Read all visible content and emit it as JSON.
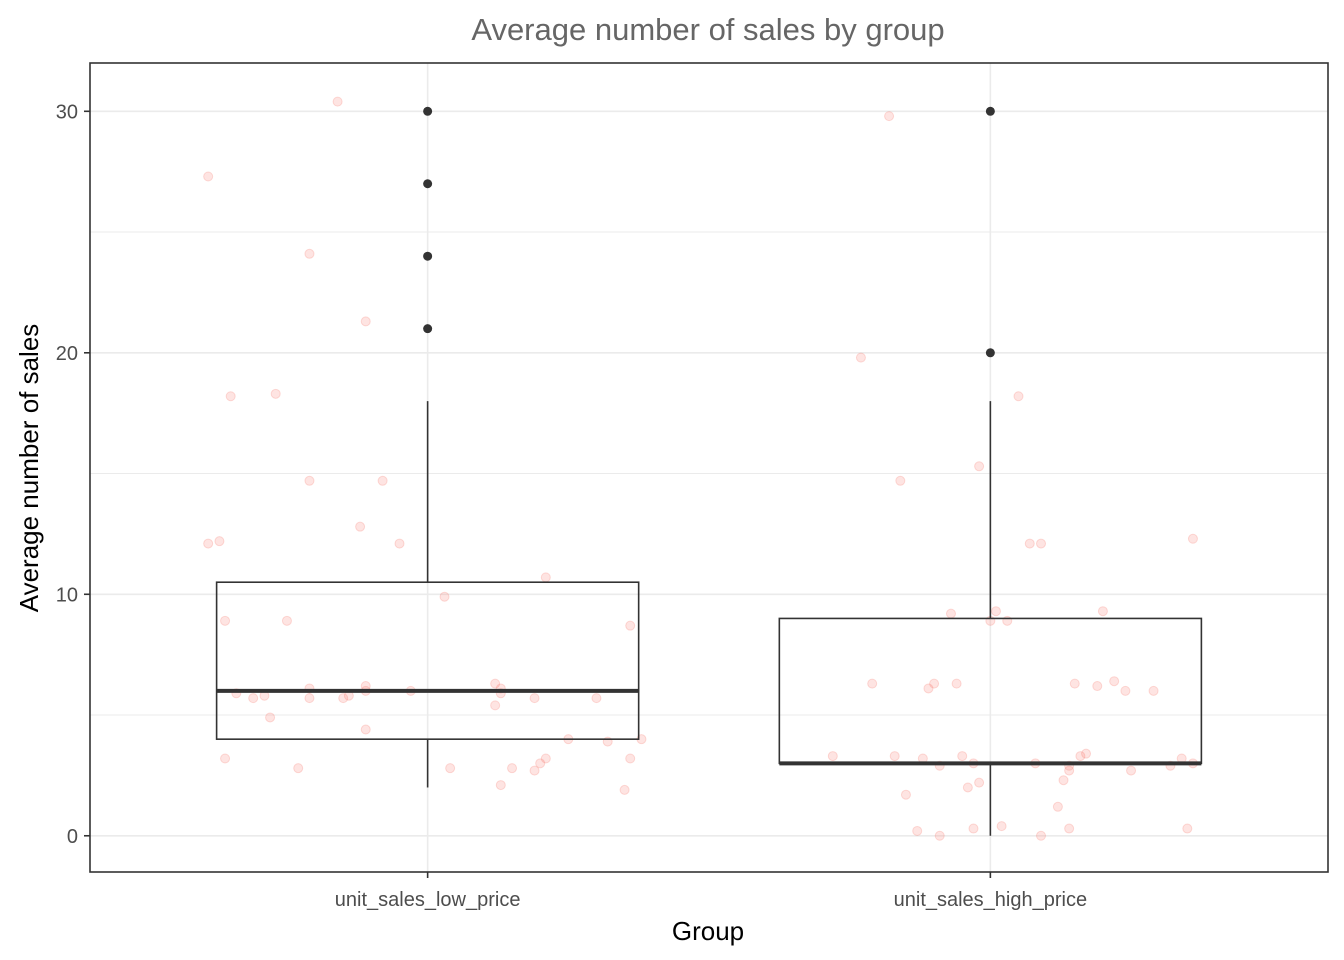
{
  "chart_data": {
    "type": "boxplot",
    "title": "Average number of sales by group",
    "xlabel": "Group",
    "ylabel": "Average number of sales",
    "categories": [
      "unit_sales_low_price",
      "unit_sales_high_price"
    ],
    "ylim": [
      -1.5,
      32
    ],
    "yticks": [
      0,
      10,
      20,
      30
    ],
    "grid": true,
    "colors": {
      "jitter": "#f8766d",
      "box": "#333333",
      "grid": "#ebebeb",
      "panel_border": "#333333",
      "title": "#666666"
    },
    "boxes": [
      {
        "category": "unit_sales_low_price",
        "whisker_low": 2,
        "q1": 4,
        "median": 6,
        "q3": 10.5,
        "whisker_high": 18,
        "outliers": [
          21,
          24,
          27,
          30
        ]
      },
      {
        "category": "unit_sales_high_price",
        "whisker_low": 0,
        "q1": 3,
        "median": 3,
        "q3": 9,
        "whisker_high": 18,
        "outliers": [
          20,
          30
        ]
      }
    ],
    "jitter_points": [
      {
        "x": 0.61,
        "y": 27.3
      },
      {
        "x": 0.84,
        "y": 30.4
      },
      {
        "x": 0.79,
        "y": 24.1
      },
      {
        "x": 0.89,
        "y": 21.3
      },
      {
        "x": 0.73,
        "y": 18.3
      },
      {
        "x": 0.65,
        "y": 18.2
      },
      {
        "x": 0.79,
        "y": 14.7
      },
      {
        "x": 0.92,
        "y": 14.7
      },
      {
        "x": 0.88,
        "y": 12.8
      },
      {
        "x": 0.61,
        "y": 12.1
      },
      {
        "x": 0.63,
        "y": 12.2
      },
      {
        "x": 0.95,
        "y": 12.1
      },
      {
        "x": 1.21,
        "y": 10.7
      },
      {
        "x": 1.03,
        "y": 9.9
      },
      {
        "x": 0.64,
        "y": 8.9
      },
      {
        "x": 0.75,
        "y": 8.9
      },
      {
        "x": 1.36,
        "y": 8.7
      },
      {
        "x": 0.79,
        "y": 6.1
      },
      {
        "x": 0.79,
        "y": 5.7
      },
      {
        "x": 0.85,
        "y": 5.7
      },
      {
        "x": 0.86,
        "y": 5.8
      },
      {
        "x": 0.89,
        "y": 6.2
      },
      {
        "x": 0.89,
        "y": 6.0
      },
      {
        "x": 0.97,
        "y": 6.0
      },
      {
        "x": 0.66,
        "y": 5.9
      },
      {
        "x": 0.69,
        "y": 5.7
      },
      {
        "x": 0.71,
        "y": 5.8
      },
      {
        "x": 0.72,
        "y": 4.9
      },
      {
        "x": 1.12,
        "y": 6.3
      },
      {
        "x": 1.13,
        "y": 6.1
      },
      {
        "x": 1.13,
        "y": 5.9
      },
      {
        "x": 1.19,
        "y": 5.7
      },
      {
        "x": 1.3,
        "y": 5.7
      },
      {
        "x": 1.12,
        "y": 5.4
      },
      {
        "x": 0.89,
        "y": 4.4
      },
      {
        "x": 1.25,
        "y": 4.0
      },
      {
        "x": 1.32,
        "y": 3.9
      },
      {
        "x": 1.38,
        "y": 4.0
      },
      {
        "x": 1.21,
        "y": 3.2
      },
      {
        "x": 1.36,
        "y": 3.2
      },
      {
        "x": 0.64,
        "y": 3.2
      },
      {
        "x": 0.77,
        "y": 2.8
      },
      {
        "x": 1.04,
        "y": 2.8
      },
      {
        "x": 1.15,
        "y": 2.8
      },
      {
        "x": 1.19,
        "y": 2.7
      },
      {
        "x": 1.2,
        "y": 3.0
      },
      {
        "x": 1.13,
        "y": 2.1
      },
      {
        "x": 1.35,
        "y": 1.9
      },
      {
        "x": 1.82,
        "y": 29.8
      },
      {
        "x": 1.77,
        "y": 19.8
      },
      {
        "x": 2.05,
        "y": 18.2
      },
      {
        "x": 1.98,
        "y": 15.3
      },
      {
        "x": 1.84,
        "y": 14.7
      },
      {
        "x": 2.07,
        "y": 12.1
      },
      {
        "x": 2.09,
        "y": 12.1
      },
      {
        "x": 2.36,
        "y": 12.3
      },
      {
        "x": 1.93,
        "y": 9.2
      },
      {
        "x": 2.01,
        "y": 9.3
      },
      {
        "x": 2.2,
        "y": 9.3
      },
      {
        "x": 2.0,
        "y": 8.9
      },
      {
        "x": 2.03,
        "y": 8.9
      },
      {
        "x": 1.79,
        "y": 6.3
      },
      {
        "x": 1.89,
        "y": 6.1
      },
      {
        "x": 1.9,
        "y": 6.3
      },
      {
        "x": 1.94,
        "y": 6.3
      },
      {
        "x": 2.15,
        "y": 6.3
      },
      {
        "x": 2.19,
        "y": 6.2
      },
      {
        "x": 2.22,
        "y": 6.4
      },
      {
        "x": 2.24,
        "y": 6.0
      },
      {
        "x": 2.29,
        "y": 6.0
      },
      {
        "x": 1.72,
        "y": 3.3
      },
      {
        "x": 1.83,
        "y": 3.3
      },
      {
        "x": 1.88,
        "y": 3.2
      },
      {
        "x": 1.91,
        "y": 2.9
      },
      {
        "x": 1.95,
        "y": 3.3
      },
      {
        "x": 1.97,
        "y": 3.0
      },
      {
        "x": 2.08,
        "y": 3.0
      },
      {
        "x": 2.16,
        "y": 3.3
      },
      {
        "x": 2.17,
        "y": 3.4
      },
      {
        "x": 2.14,
        "y": 2.9
      },
      {
        "x": 2.14,
        "y": 2.7
      },
      {
        "x": 2.25,
        "y": 2.7
      },
      {
        "x": 2.32,
        "y": 2.9
      },
      {
        "x": 2.34,
        "y": 3.2
      },
      {
        "x": 2.36,
        "y": 3.0
      },
      {
        "x": 2.13,
        "y": 2.3
      },
      {
        "x": 2.12,
        "y": 1.2
      },
      {
        "x": 1.85,
        "y": 1.7
      },
      {
        "x": 1.96,
        "y": 2.0
      },
      {
        "x": 1.98,
        "y": 2.2
      },
      {
        "x": 1.87,
        "y": 0.2
      },
      {
        "x": 1.91,
        "y": 0.0
      },
      {
        "x": 1.97,
        "y": 0.3
      },
      {
        "x": 2.02,
        "y": 0.4
      },
      {
        "x": 2.09,
        "y": 0.0
      },
      {
        "x": 2.14,
        "y": 0.3
      },
      {
        "x": 2.35,
        "y": 0.3
      }
    ]
  }
}
